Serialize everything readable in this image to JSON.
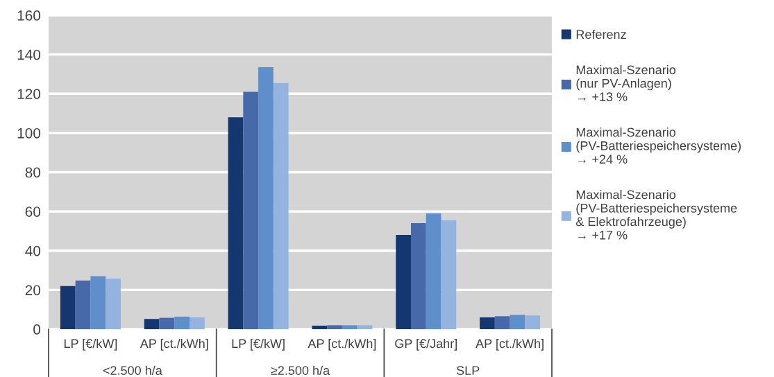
{
  "chart_data": {
    "type": "bar",
    "categories": [
      "LP [€/kW]",
      "AP [ct./kWh]",
      "LP [€/kW]",
      "AP [ct./kWh]",
      "GP [€/Jahr]",
      "AP [ct./kWh]"
    ],
    "series": [
      {
        "name": "Referenz",
        "color": "#14376f",
        "values": [
          22,
          5.2,
          108,
          1.8,
          48,
          6
        ]
      },
      {
        "name": "Maximal-Szenario\n(nur PV-Anlagen)\n→ +13 %",
        "color": "#4769aa",
        "values": [
          24.8,
          5.8,
          121,
          2.0,
          54,
          6.6
        ]
      },
      {
        "name": "Maximal-Szenario\n(PV-Batteriespeichersysteme)\n→ +24 %",
        "color": "#5f8fca",
        "values": [
          27,
          6.4,
          133.5,
          2.0,
          59,
          7.3
        ]
      },
      {
        "name": "Maximal-Szenario\n(PV-Batteriespeichersysteme\n& Elektrofahrzeuge)\n→ +17 %",
        "color": "#95b3df",
        "values": [
          25.8,
          6.0,
          125.5,
          2.0,
          55.5,
          7.0
        ]
      }
    ],
    "annotations": [
      "<2.500 h/a",
      "≥2.500 h/a",
      "SLP"
    ],
    "ylim": [
      0,
      160
    ],
    "yticks": [
      0,
      20,
      40,
      60,
      80,
      100,
      120,
      140,
      160
    ],
    "grid": "y",
    "legend": "right"
  }
}
